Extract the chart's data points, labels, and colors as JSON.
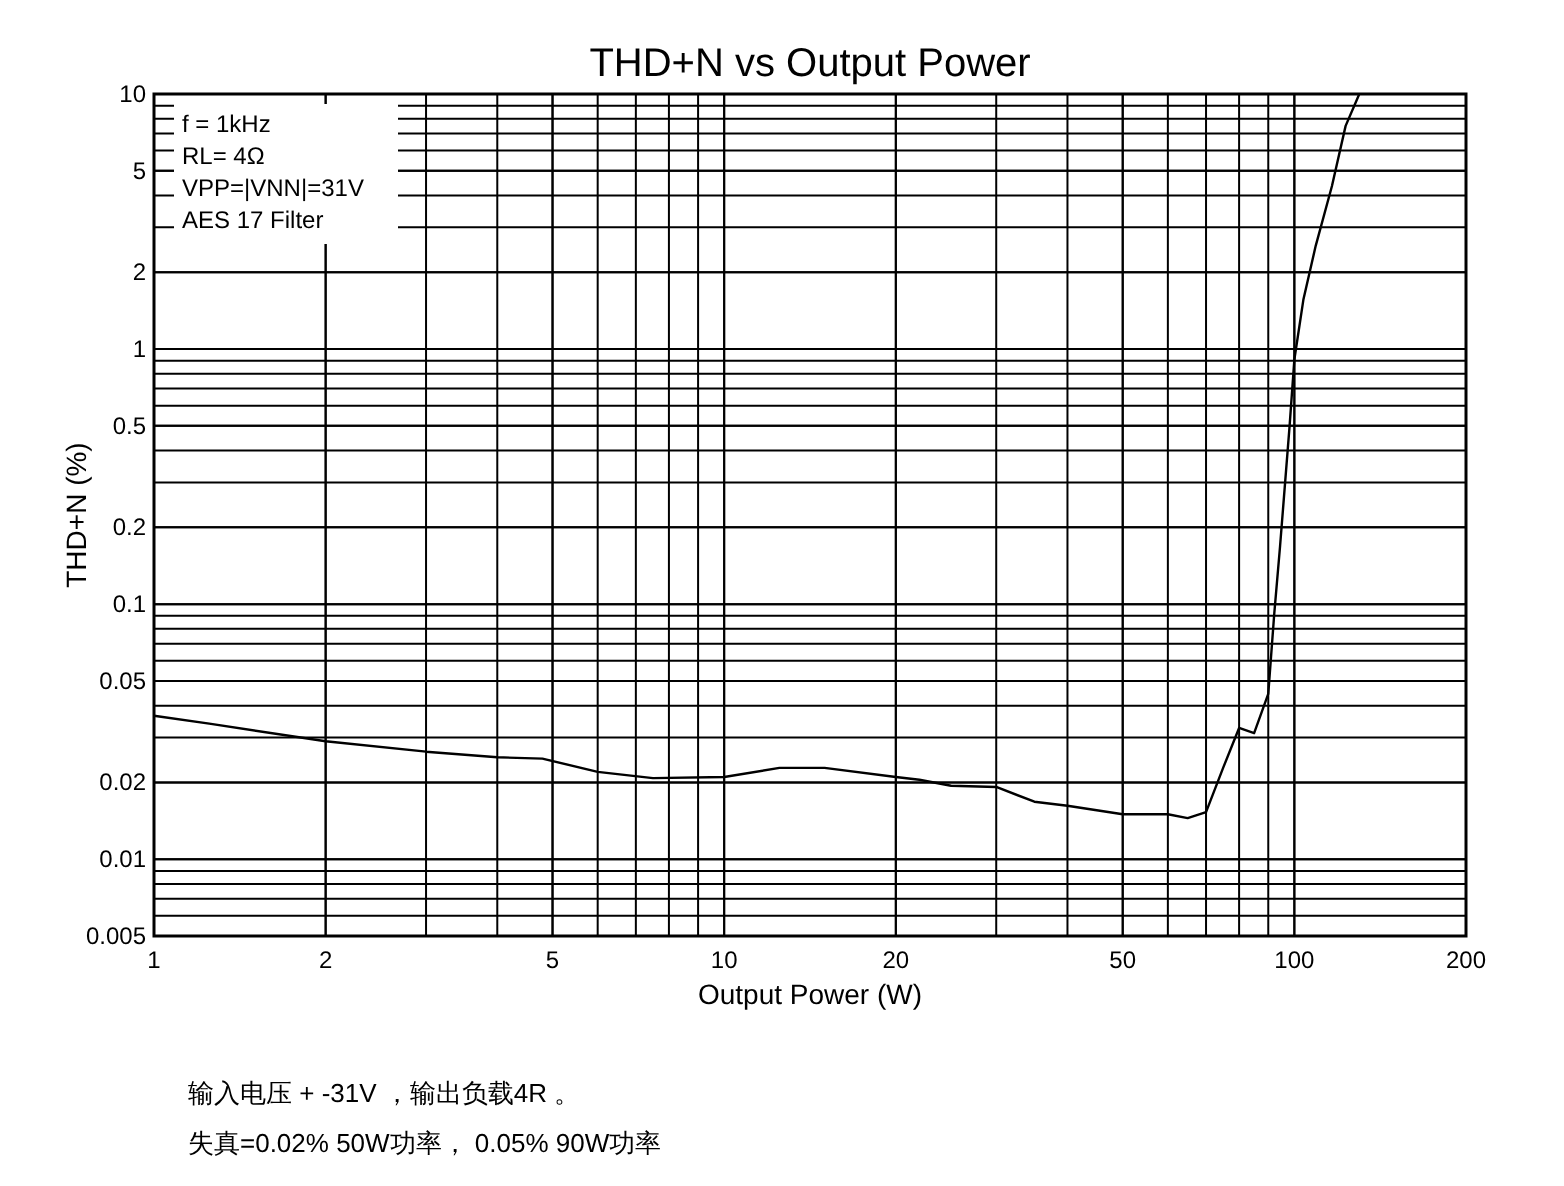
{
  "chart_data": {
    "type": "line",
    "title": "THD+N vs Output Power",
    "xlabel": "Output Power (W)",
    "ylabel": "THD+N (%)",
    "log": "xy",
    "grid": true,
    "marker": "none",
    "line_style": "solid",
    "xlim": [
      1,
      200
    ],
    "ylim": [
      0.005,
      10
    ],
    "xticks": [
      1,
      2,
      5,
      10,
      20,
      50,
      100,
      200
    ],
    "yticks": [
      0.005,
      0.01,
      0.02,
      0.05,
      0.1,
      0.2,
      0.5,
      1,
      2,
      5,
      10
    ],
    "x": [
      1,
      1.25,
      2,
      3,
      4,
      4.8,
      6,
      7.5,
      10,
      12.5,
      15,
      20,
      22,
      25,
      30,
      35,
      40,
      50,
      60,
      65,
      70,
      75,
      80,
      85,
      90,
      92.2,
      94.4,
      98.1,
      100,
      103.7,
      109,
      116.4,
      123,
      130
    ],
    "series": [
      {
        "color": "#000000",
        "values": [
          0.0365,
          0.034,
          0.029,
          0.0264,
          0.0251,
          0.0248,
          0.022,
          0.0208,
          0.021,
          0.0228,
          0.0228,
          0.021,
          0.0205,
          0.0194,
          0.0192,
          0.0168,
          0.0162,
          0.015,
          0.015,
          0.0145,
          0.0153,
          0.0228,
          0.0327,
          0.0312,
          0.0445,
          0.0916,
          0.169,
          0.5,
          0.91,
          1.56,
          2.54,
          4.36,
          7.5,
          10
        ]
      }
    ],
    "annotations": [
      "f = 1kHz",
      "RL= 4Ω",
      "VPP=|VNN|=31V",
      "AES 17 Filter",
      "输入电压 + -31V ，输出负载4R 。",
      "失真=0.02%  50W功率，   0.05% 90W功率"
    ]
  }
}
